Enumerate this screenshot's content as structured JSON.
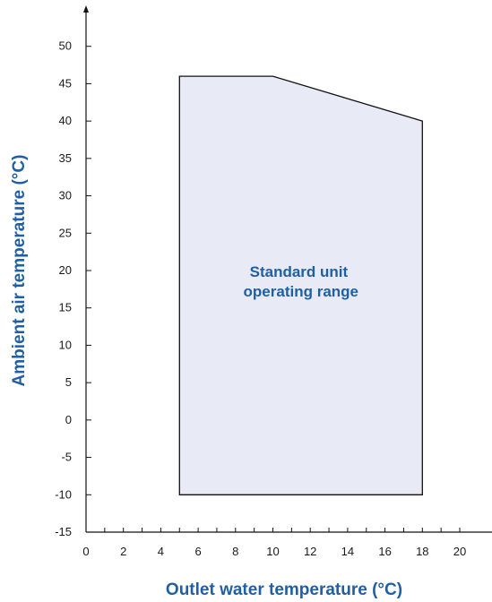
{
  "chart_data": {
    "type": "area",
    "title": "",
    "xlabel": "Outlet water temperature (°C)",
    "ylabel": "Ambient air temperature (°C)",
    "xlim": [
      0,
      22
    ],
    "ylim": [
      -15,
      55
    ],
    "x_ticks": [
      "0",
      "2",
      "4",
      "6",
      "8",
      "10",
      "12",
      "14",
      "16",
      "18",
      "20"
    ],
    "x_tick_values": [
      0,
      2,
      4,
      6,
      8,
      10,
      12,
      14,
      16,
      18,
      20
    ],
    "y_ticks": [
      "-15",
      "-10",
      "-5",
      "0",
      "5",
      "10",
      "15",
      "20",
      "25",
      "30",
      "35",
      "40",
      "45",
      "50"
    ],
    "y_tick_values": [
      -15,
      -10,
      -5,
      0,
      5,
      10,
      15,
      20,
      25,
      30,
      35,
      40,
      45,
      50
    ],
    "grid": false,
    "series": [
      {
        "points": [
          {
            "x": 5,
            "y": -10
          },
          {
            "x": 5,
            "y": 46
          },
          {
            "x": 10,
            "y": 46
          },
          {
            "x": 18,
            "y": 40
          },
          {
            "x": 18,
            "y": -10
          }
        ]
      }
    ],
    "annotation": {
      "lines": [
        "Standard unit",
        "operating range"
      ],
      "x": 11.5,
      "y": 20
    },
    "colors": {
      "fill": "#e8ebf6",
      "stroke": "#111111",
      "axis": "#111111",
      "title": "#1f5fa3"
    }
  }
}
